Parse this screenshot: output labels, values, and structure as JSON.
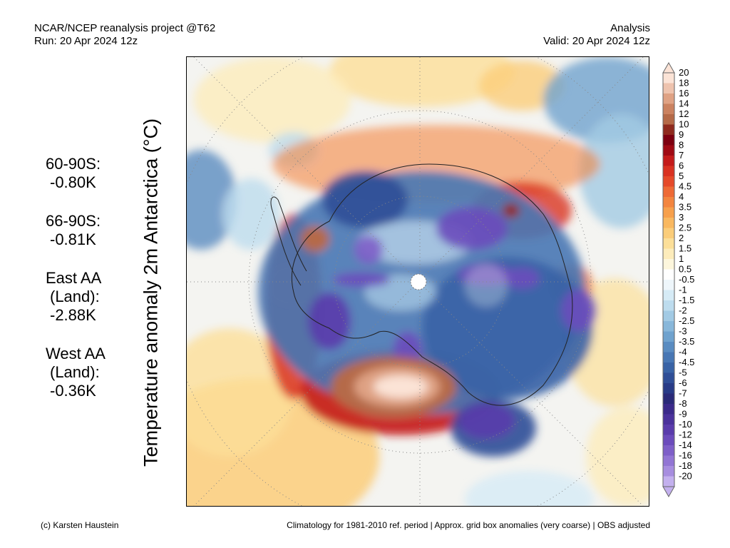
{
  "header": {
    "left_line1": "NCAR/NCEP reanalysis project @T62",
    "left_line2": "Run: 20 Apr 2024 12z",
    "right_line1": "Analysis",
    "right_line2": "Valid: 20 Apr 2024 12z"
  },
  "map": {
    "title_vertical": "Temperature anomaly 2m Antarctica (°C)",
    "region": "Antarctica",
    "projection": "south-polar-stereographic"
  },
  "stats": [
    {
      "label": "60-90S:",
      "value": "-0.80K"
    },
    {
      "label": "66-90S:",
      "value": "-0.81K"
    },
    {
      "label": "East AA",
      "label2": "(Land):",
      "value": "-2.88K"
    },
    {
      "label": "West AA",
      "label2": "(Land):",
      "value": "-0.36K"
    }
  ],
  "colorbar": {
    "labels": [
      "20",
      "18",
      "16",
      "14",
      "12",
      "10",
      "9",
      "8",
      "7",
      "6",
      "5",
      "4.5",
      "4",
      "3.5",
      "3",
      "2.5",
      "2",
      "1.5",
      "1",
      "0.5",
      "-0.5",
      "-1",
      "-1.5",
      "-2",
      "-2.5",
      "-3",
      "-3.5",
      "-4",
      "-4.5",
      "-5",
      "-6",
      "-7",
      "-8",
      "-9",
      "-10",
      "-12",
      "-14",
      "-16",
      "-18",
      "-20"
    ],
    "colors": [
      "#fbe3d6",
      "#eec3ae",
      "#dfa284",
      "#cb8260",
      "#b56a48",
      "#8f2a1e",
      "#7d0010",
      "#a00a14",
      "#c41b1b",
      "#d93222",
      "#e54a2a",
      "#ee6a36",
      "#f3853f",
      "#f7a04c",
      "#f9b860",
      "#fbcd7a",
      "#fcdf99",
      "#fdecbb",
      "#fdf6dc",
      "#ffffff",
      "#eef6fb",
      "#d6ebf6",
      "#bddcee",
      "#a2cae4",
      "#88b7da",
      "#6fa2ce",
      "#5a8cc1",
      "#4877b4",
      "#3963a6",
      "#2f4e97",
      "#283b87",
      "#2a2a78",
      "#3b2a8a",
      "#4b329c",
      "#5a3cac",
      "#6c4cbc",
      "#7e5fc8",
      "#9275d4",
      "#a78ddf",
      "#c3b0ee"
    ]
  },
  "footer": {
    "left": "(c) Karsten Haustein",
    "right": "Climatology for 1981-2010 ref. period | Approx. grid box anomalies (very coarse) | OBS adjusted"
  }
}
